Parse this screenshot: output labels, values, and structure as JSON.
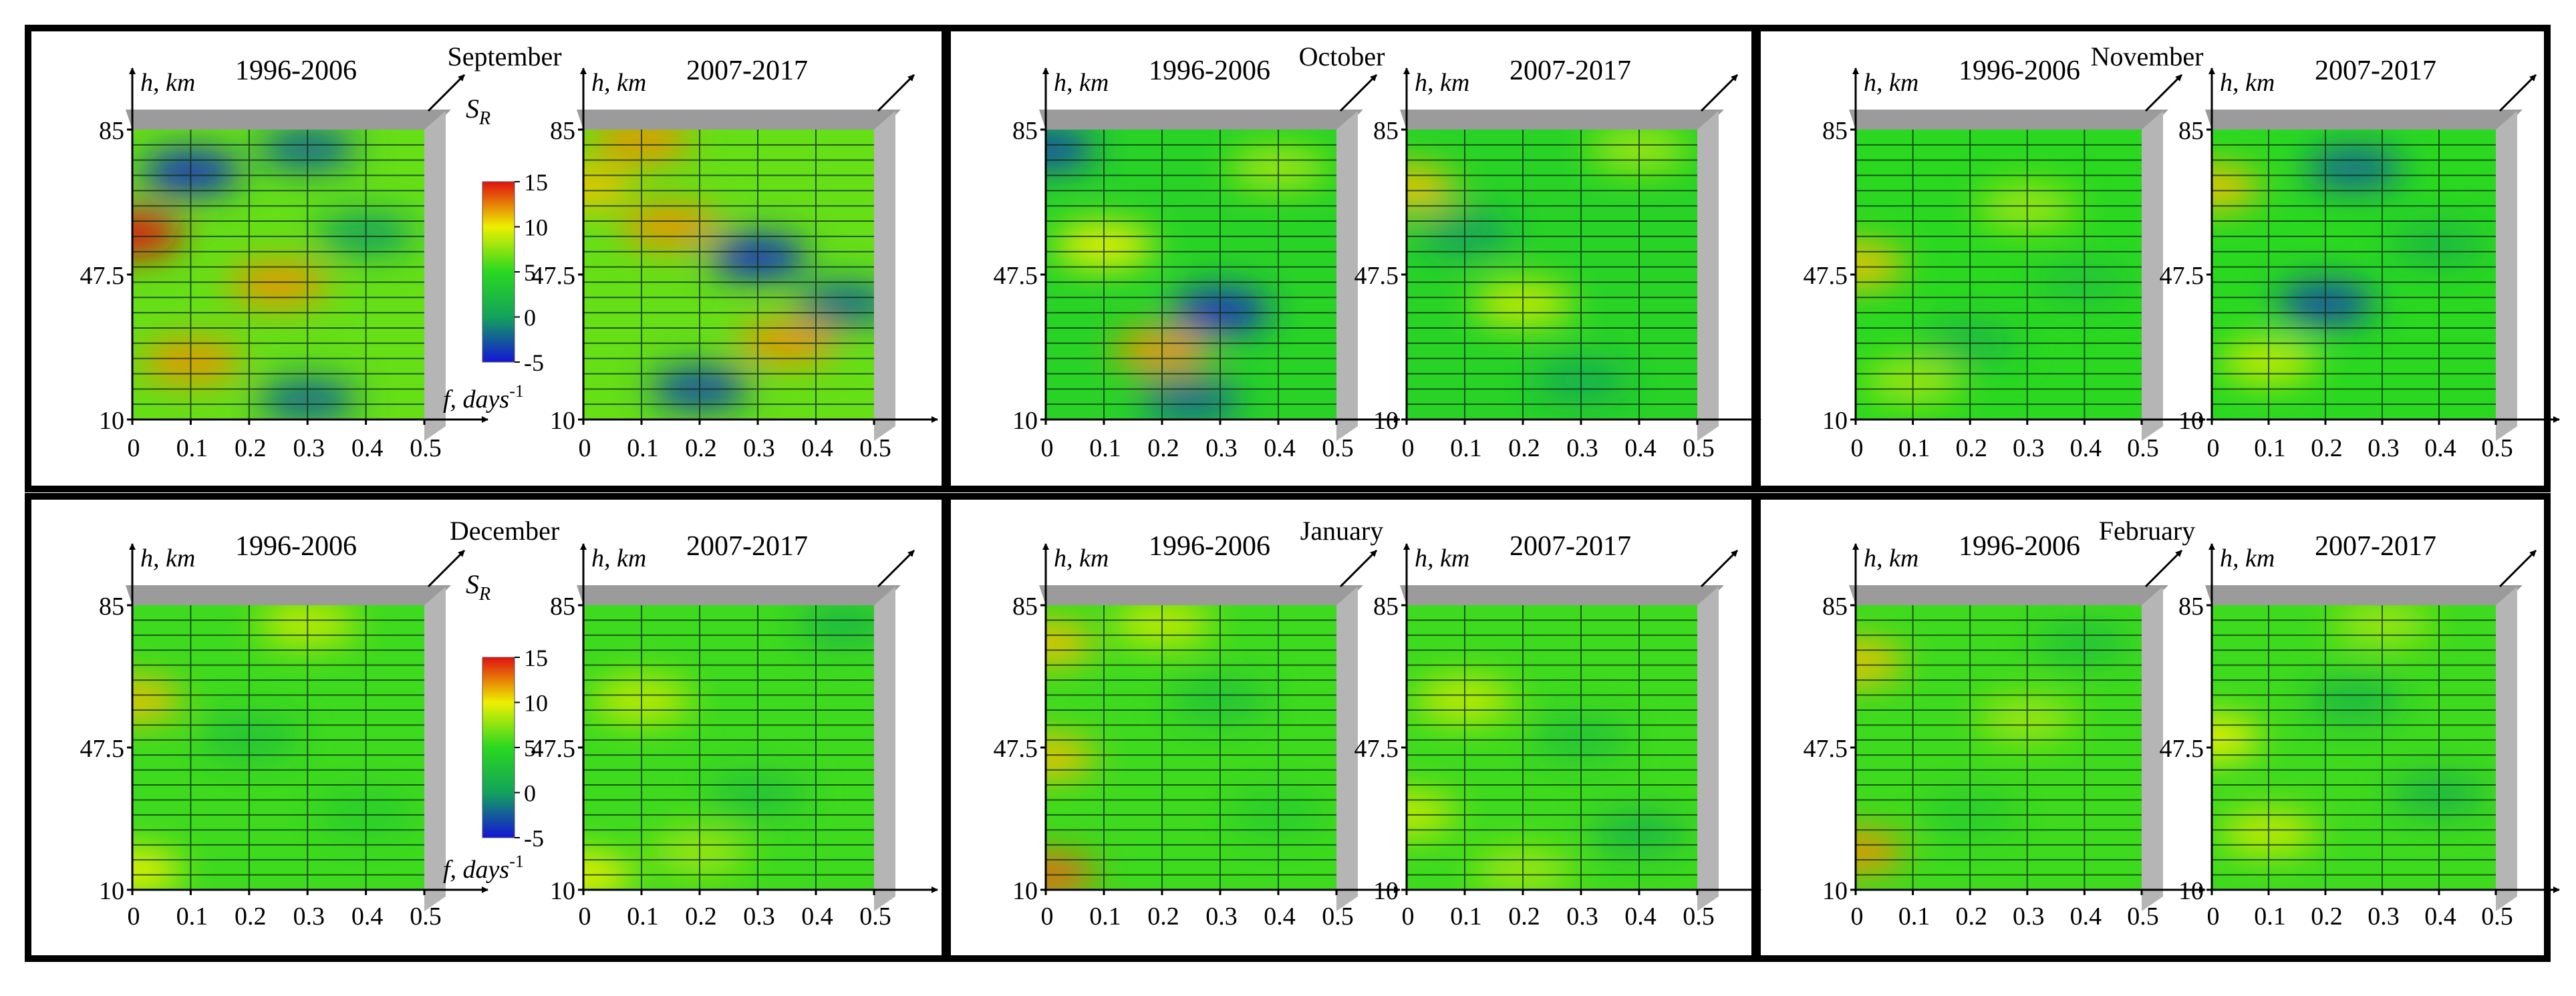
{
  "figure": {
    "colorbar": {
      "min": -5,
      "max": 15,
      "ticks": [
        15,
        10,
        5,
        0,
        -5
      ]
    },
    "axis_labels": {
      "y": "h, km",
      "x": "f, days",
      "x_exponent": "-1",
      "z": "S",
      "z_sub": "R"
    },
    "y_ticks": [
      "85",
      "47.5",
      "10"
    ],
    "x_ticks": [
      "0",
      "0.1",
      "0.2",
      "0.3",
      "0.4",
      "0.5"
    ],
    "period_labels": [
      "1996-2006",
      "2007-2017"
    ],
    "colors": {
      "low": "#1515d8",
      "mid": "#13a35b",
      "high": "#eef000",
      "peak": "#e01010",
      "wall": "#9b9b9b",
      "grid": "#0b2a12"
    }
  },
  "chart_data": [
    {
      "type": "heatmap",
      "title": "September",
      "row": 0,
      "col": 0,
      "ylim": [
        10,
        85
      ],
      "xlim": [
        0,
        0.5
      ],
      "zlim": [
        -5,
        15
      ],
      "has_colorbar": true,
      "has_x_label": true,
      "periods": [
        {
          "label": "1996-2006",
          "base": 6.5,
          "hotspots": [
            [
              0.0,
              58,
              15
            ],
            [
              0.1,
              74,
              -4
            ],
            [
              0.25,
              45,
              12
            ],
            [
              0.1,
              25,
              12
            ],
            [
              0.3,
              15,
              -2
            ],
            [
              0.4,
              58,
              0
            ],
            [
              0.3,
              80,
              -2
            ]
          ]
        },
        {
          "label": "2007-2017",
          "base": 6.5,
          "hotspots": [
            [
              0.0,
              70,
              11
            ],
            [
              0.3,
              52,
              -4
            ],
            [
              0.15,
              60,
              12
            ],
            [
              0.35,
              30,
              12
            ],
            [
              0.2,
              18,
              -3
            ],
            [
              0.45,
              40,
              -2
            ],
            [
              0.1,
              82,
              12
            ]
          ]
        }
      ]
    },
    {
      "type": "heatmap",
      "title": "October",
      "row": 0,
      "col": 1,
      "ylim": [
        10,
        85
      ],
      "xlim": [
        0,
        0.5
      ],
      "zlim": [
        -5,
        15
      ],
      "has_colorbar": false,
      "has_x_label": false,
      "periods": [
        {
          "label": "1996-2006",
          "base": 4.5,
          "hotspots": [
            [
              0.0,
              80,
              -3
            ],
            [
              0.3,
              38,
              -4
            ],
            [
              0.2,
              28,
              12
            ],
            [
              0.1,
              55,
              10
            ],
            [
              0.4,
              75,
              8
            ],
            [
              0.25,
              15,
              -2
            ]
          ]
        },
        {
          "label": "2007-2017",
          "base": 4.5,
          "hotspots": [
            [
              0.1,
              58,
              0
            ],
            [
              0.0,
              70,
              11
            ],
            [
              0.3,
              20,
              1
            ],
            [
              0.2,
              40,
              9
            ],
            [
              0.4,
              80,
              8
            ]
          ]
        }
      ]
    },
    {
      "type": "heatmap",
      "title": "November",
      "row": 0,
      "col": 2,
      "ylim": [
        10,
        85
      ],
      "xlim": [
        0,
        0.5
      ],
      "zlim": [
        -5,
        15
      ],
      "has_colorbar": false,
      "has_x_label": false,
      "periods": [
        {
          "label": "1996-2006",
          "base": 5,
          "hotspots": [
            [
              0.0,
              50,
              11
            ],
            [
              0.2,
              30,
              2
            ],
            [
              0.3,
              65,
              8
            ],
            [
              0.1,
              20,
              8
            ],
            [
              0.4,
              45,
              3
            ]
          ]
        },
        {
          "label": "2007-2017",
          "base": 5,
          "hotspots": [
            [
              0.2,
              40,
              -3
            ],
            [
              0.25,
              75,
              -2
            ],
            [
              0.0,
              70,
              11
            ],
            [
              0.1,
              25,
              9
            ],
            [
              0.4,
              55,
              2
            ]
          ]
        }
      ]
    },
    {
      "type": "heatmap",
      "title": "December",
      "row": 1,
      "col": 0,
      "ylim": [
        10,
        85
      ],
      "xlim": [
        0,
        0.5
      ],
      "zlim": [
        -5,
        15
      ],
      "has_colorbar": true,
      "has_x_label": true,
      "periods": [
        {
          "label": "1996-2006",
          "base": 5.5,
          "hotspots": [
            [
              0.0,
              60,
              11
            ],
            [
              0.3,
              80,
              9
            ],
            [
              0.2,
              50,
              3
            ],
            [
              0.0,
              15,
              10
            ],
            [
              0.4,
              30,
              4
            ]
          ]
        },
        {
          "label": "2007-2017",
          "base": 5.5,
          "hotspots": [
            [
              0.45,
              80,
              2
            ],
            [
              0.1,
              60,
              9
            ],
            [
              0.3,
              35,
              3
            ],
            [
              0.0,
              14,
              10
            ],
            [
              0.2,
              20,
              8
            ]
          ]
        }
      ]
    },
    {
      "type": "heatmap",
      "title": "January",
      "row": 1,
      "col": 1,
      "ylim": [
        10,
        85
      ],
      "xlim": [
        0,
        0.5
      ],
      "zlim": [
        -5,
        15
      ],
      "has_colorbar": false,
      "has_x_label": false,
      "periods": [
        {
          "label": "1996-2006",
          "base": 5.5,
          "hotspots": [
            [
              0.0,
              75,
              11
            ],
            [
              0.0,
              45,
              11
            ],
            [
              0.0,
              14,
              13
            ],
            [
              0.3,
              60,
              3
            ],
            [
              0.2,
              80,
              9
            ],
            [
              0.4,
              30,
              4
            ]
          ]
        },
        {
          "label": "2007-2017",
          "base": 5.5,
          "hotspots": [
            [
              0.1,
              60,
              9
            ],
            [
              0.4,
              25,
              2
            ],
            [
              0.3,
              50,
              3
            ],
            [
              0.0,
              30,
              9
            ],
            [
              0.2,
              15,
              8
            ]
          ]
        }
      ]
    },
    {
      "type": "heatmap",
      "title": "February",
      "row": 1,
      "col": 2,
      "ylim": [
        10,
        85
      ],
      "xlim": [
        0,
        0.5
      ],
      "zlim": [
        -5,
        15
      ],
      "has_colorbar": false,
      "has_x_label": false,
      "periods": [
        {
          "label": "1996-2006",
          "base": 5.5,
          "hotspots": [
            [
              0.0,
              70,
              11
            ],
            [
              0.0,
              20,
              12
            ],
            [
              0.4,
              75,
              3
            ],
            [
              0.3,
              55,
              8
            ],
            [
              0.2,
              30,
              4
            ]
          ]
        },
        {
          "label": "2007-2017",
          "base": 5.5,
          "hotspots": [
            [
              0.25,
              60,
              2
            ],
            [
              0.4,
              35,
              2
            ],
            [
              0.0,
              50,
              10
            ],
            [
              0.1,
              25,
              9
            ],
            [
              0.3,
              80,
              8
            ]
          ]
        }
      ]
    }
  ]
}
